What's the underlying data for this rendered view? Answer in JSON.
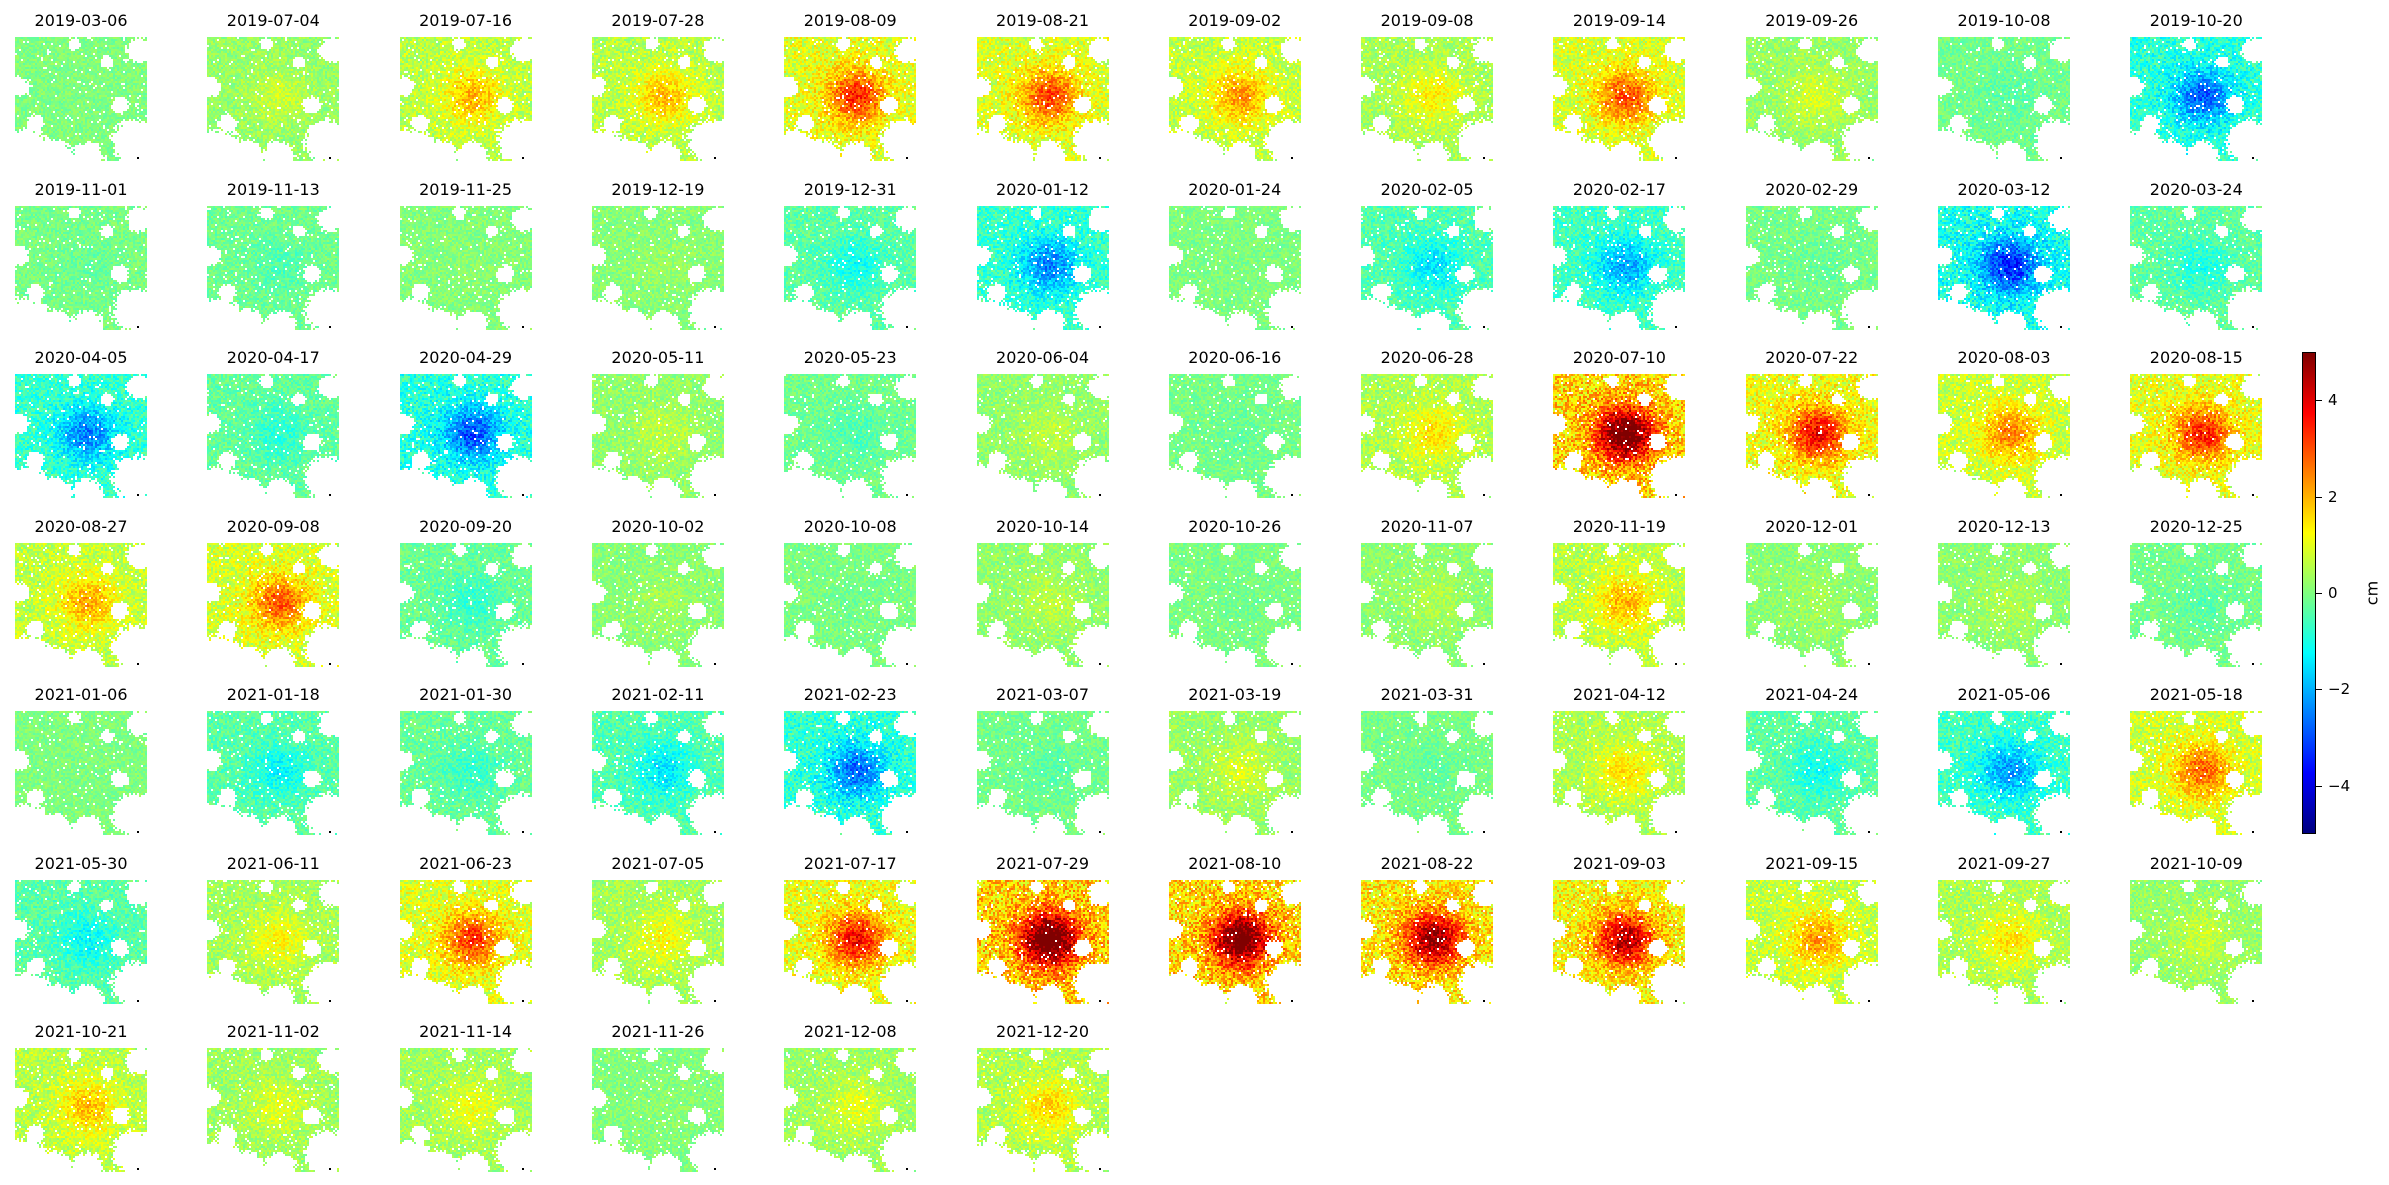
{
  "chart_data": {
    "type": "heatmap",
    "colormap": "jet",
    "dates": [
      "2019-03-06",
      "2019-07-04",
      "2019-07-16",
      "2019-07-28",
      "2019-08-09",
      "2019-08-21",
      "2019-09-02",
      "2019-09-08",
      "2019-09-14",
      "2019-09-26",
      "2019-10-08",
      "2019-10-20",
      "2019-11-01",
      "2019-11-13",
      "2019-11-25",
      "2019-12-19",
      "2019-12-31",
      "2020-01-12",
      "2020-01-24",
      "2020-02-05",
      "2020-02-17",
      "2020-02-29",
      "2020-03-12",
      "2020-03-24",
      "2020-04-05",
      "2020-04-17",
      "2020-04-29",
      "2020-05-11",
      "2020-05-23",
      "2020-06-04",
      "2020-06-16",
      "2020-06-28",
      "2020-07-10",
      "2020-07-22",
      "2020-08-03",
      "2020-08-15",
      "2020-08-27",
      "2020-09-08",
      "2020-09-20",
      "2020-10-02",
      "2020-10-08",
      "2020-10-14",
      "2020-10-26",
      "2020-11-07",
      "2020-11-19",
      "2020-12-01",
      "2020-12-13",
      "2020-12-25",
      "2021-01-06",
      "2021-01-18",
      "2021-01-30",
      "2021-02-11",
      "2021-02-23",
      "2021-03-07",
      "2021-03-19",
      "2021-03-31",
      "2021-04-12",
      "2021-04-24",
      "2021-05-06",
      "2021-05-18",
      "2021-05-30",
      "2021-06-11",
      "2021-06-23",
      "2021-07-05",
      "2021-07-17",
      "2021-07-29",
      "2021-08-10",
      "2021-08-22",
      "2021-09-03",
      "2021-09-15",
      "2021-09-27",
      "2021-10-09",
      "2021-10-21",
      "2021-11-02",
      "2021-11-14",
      "2021-11-26",
      "2021-12-08",
      "2021-12-20"
    ],
    "mean_displacement_cm": [
      0.0,
      0.6,
      1.6,
      1.5,
      2.7,
      2.5,
      1.8,
      1.1,
      2.4,
      0.7,
      -0.3,
      -2.3,
      -0.2,
      -0.4,
      0.1,
      0.2,
      -0.9,
      -2.0,
      0.0,
      -1.2,
      -1.7,
      -0.2,
      -2.8,
      -0.8,
      -2.0,
      -0.7,
      -2.4,
      0.5,
      -0.4,
      0.5,
      -0.2,
      1.2,
      4.6,
      3.1,
      2.0,
      2.8,
      1.7,
      2.3,
      -0.6,
      0.3,
      -0.1,
      0.5,
      -0.1,
      0.4,
      1.6,
      0.3,
      0.4,
      -0.3,
      0.0,
      -1.0,
      -0.6,
      -1.2,
      -2.2,
      -0.3,
      0.7,
      -0.2,
      1.2,
      -0.9,
      -1.8,
      2.2,
      -1.0,
      1.0,
      2.6,
      1.0,
      3.0,
      4.8,
      4.6,
      4.0,
      3.6,
      1.8,
      1.2,
      0.6,
      1.5,
      0.8,
      0.9,
      0.1,
      0.8,
      1.3
    ],
    "grid": {
      "rows": 7,
      "cols": 12
    },
    "colorbar": {
      "label": "cm",
      "vmin": -5,
      "vmax": 5,
      "ticks": [
        -4,
        -2,
        0,
        2,
        4
      ],
      "tick_labels": [
        "−4",
        "−2",
        "0",
        "2",
        "4"
      ]
    },
    "title": "",
    "xlabel": "",
    "ylabel": ""
  }
}
